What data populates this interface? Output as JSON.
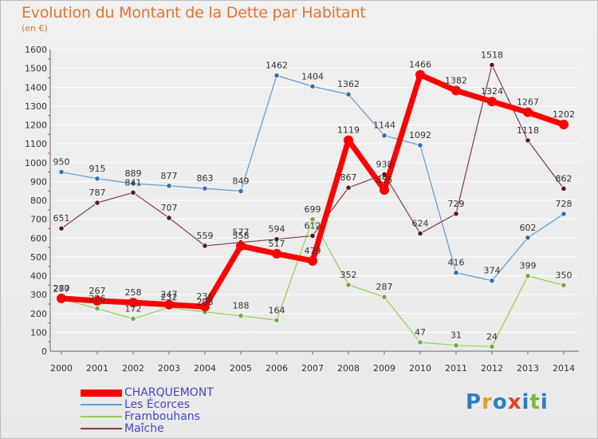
{
  "title": "Evolution du Montant de la Dette par Habitant",
  "subtitle": "(en €)",
  "logo": {
    "text": "Proxiti",
    "letter_colors": [
      "#2a7fc4",
      "#e8a020",
      "#2a7fc4",
      "#e84030",
      "#2a7fc4",
      "#7ab830",
      "#2a7fc4"
    ]
  },
  "chart_data": {
    "type": "line",
    "x": [
      "2000",
      "2001",
      "2002",
      "2003",
      "2004",
      "2005",
      "2006",
      "2007",
      "2008",
      "2009",
      "2010",
      "2011",
      "2012",
      "2013",
      "2014"
    ],
    "ylim": [
      0,
      1600
    ],
    "yticks": [
      0,
      100,
      200,
      300,
      400,
      500,
      600,
      700,
      800,
      900,
      1000,
      1100,
      1200,
      1300,
      1400,
      1500,
      1600
    ],
    "grid": "horizontal",
    "legend_position": "bottom-left",
    "series": [
      {
        "name": "Les Écorces",
        "color": "#5b9bd5",
        "point_color": "#2e75b6",
        "width": 1.2,
        "values": [
          950,
          915,
          889,
          877,
          863,
          849,
          1462,
          1404,
          1362,
          1144,
          1092,
          416,
          374,
          602,
          728
        ]
      },
      {
        "name": "Frambouhans",
        "color": "#92d050",
        "point_color": "#70ad47",
        "width": 1.2,
        "values": [
          277,
          226,
          172,
          232,
          208,
          188,
          164,
          699,
          352,
          287,
          47,
          31,
          24,
          399,
          350
        ]
      },
      {
        "name": "Maîche",
        "color": "#843c3c",
        "point_color": "#5a1a1a",
        "width": 1.2,
        "values": [
          651,
          787,
          841,
          707,
          559,
          577,
          594,
          612,
          867,
          938,
          624,
          729,
          1518,
          1118,
          862
        ]
      },
      {
        "name": "CHARQUEMONT",
        "color": "#ff0000",
        "point_color": "#ff0000",
        "width": 7,
        "values": [
          280,
          267,
          258,
          247,
          236,
          558,
          517,
          479,
          1119,
          855,
          1466,
          1382,
          1324,
          1267,
          1202
        ]
      }
    ]
  }
}
